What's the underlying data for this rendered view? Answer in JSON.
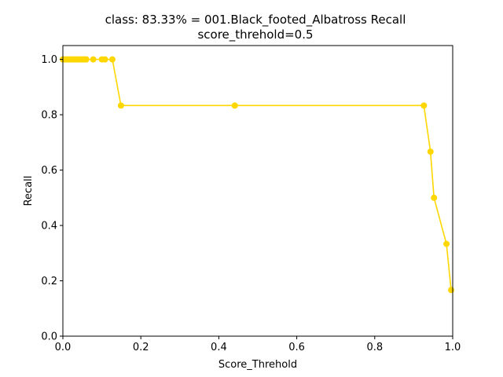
{
  "chart_data": {
    "type": "line",
    "title_line1": "class: 83.33% = 001.Black_footed_Albatross Recall",
    "title_line2": "score_threhold=0.5",
    "xlabel": "Score_Threhold",
    "ylabel": "Recall",
    "xlim": [
      0.0,
      1.0
    ],
    "ylim": [
      0.0,
      1.05
    ],
    "xticks": [
      0.0,
      0.2,
      0.4,
      0.6,
      0.8,
      1.0
    ],
    "xtick_labels": [
      "0.0",
      "0.2",
      "0.4",
      "0.6",
      "0.8",
      "1.0"
    ],
    "yticks": [
      0.0,
      0.2,
      0.4,
      0.6,
      0.8,
      1.0
    ],
    "ytick_labels": [
      "0.0",
      "0.2",
      "0.4",
      "0.6",
      "0.8",
      "1.0"
    ],
    "grid": false,
    "line_color": "#ffd700",
    "series": [
      {
        "x": [
          0.0,
          0.005,
          0.01,
          0.015,
          0.02,
          0.025,
          0.03,
          0.035,
          0.04,
          0.045,
          0.05,
          0.055,
          0.06,
          0.078,
          0.1,
          0.108,
          0.127,
          0.149,
          0.441,
          0.926,
          0.943,
          0.952,
          0.984,
          0.996
        ],
        "y": [
          1.0,
          1.0,
          1.0,
          1.0,
          1.0,
          1.0,
          1.0,
          1.0,
          1.0,
          1.0,
          1.0,
          1.0,
          1.0,
          1.0,
          1.0,
          1.0,
          1.0,
          0.8333,
          0.8333,
          0.8333,
          0.6667,
          0.5,
          0.3333,
          0.1667
        ]
      }
    ]
  }
}
